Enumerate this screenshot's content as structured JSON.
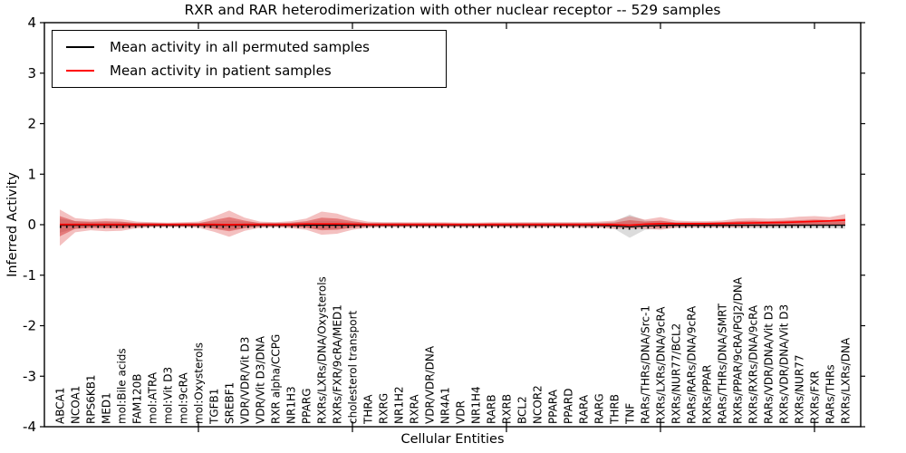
{
  "figure": {
    "title": "RXR and RAR heterodimerization with other nuclear receptor -- 529 samples",
    "xlabel": "Cellular Entities",
    "ylabel": "Inferred Activity"
  },
  "legend": {
    "items": [
      {
        "label": "Mean activity in all permuted samples",
        "color": "#000000"
      },
      {
        "label": "Mean activity in patient samples",
        "color": "#ff0000"
      }
    ]
  },
  "colors": {
    "permuted_line": "#000000",
    "patient_line": "#ff0000",
    "permuted_band": "rgba(140,140,140,0.30)",
    "patient_band_outer": "rgba(222,60,60,0.32)",
    "patient_band_inner": "rgba(210,40,40,0.45)",
    "frame": "#000000"
  },
  "chart_data": {
    "type": "area",
    "title": "RXR and RAR heterodimerization with other nuclear receptor -- 529 samples",
    "xlabel": "Cellular Entities",
    "ylabel": "Inferred Activity",
    "ylim": [
      -4,
      4
    ],
    "ytick_labels": [
      "4",
      "3",
      "2",
      "1",
      "0",
      "-1",
      "-2",
      "-3",
      "-4"
    ],
    "ytick_values": [
      4,
      3,
      2,
      1,
      0,
      -1,
      -2,
      -3,
      -4
    ],
    "xtick_decade_positions": [
      10,
      20,
      30,
      40,
      50
    ],
    "grid": false,
    "legend_position": "upper-left",
    "categories": [
      "ABCA1",
      "NCOA1",
      "RPS6KB1",
      "MED1",
      "mol:Bile acids",
      "FAM120B",
      "mol:ATRA",
      "mol:Vit D3",
      "mol:9cRA",
      "mol:Oxysterols",
      "TGFB1",
      "SREBF1",
      "VDR/VDR/Vit D3",
      "VDR/Vit D3/DNA",
      "RXR alpha/CCPG",
      "NR1H3",
      "PPARG",
      "RXRs/LXRs/DNA/Oxysterols",
      "RXRs/FXR/9cRA/MED1",
      "cholesterol transport",
      "THRA",
      "RXRG",
      "NR1H2",
      "RXRA",
      "VDR/VDR/DNA",
      "NR4A1",
      "VDR",
      "NR1H4",
      "RARB",
      "RXRB",
      "BCL2",
      "NCOR2",
      "PPARA",
      "PPARD",
      "RARA",
      "RARG",
      "THRB",
      "TNF",
      "RARs/THRs/DNA/Src-1",
      "RXRs/LXRs/DNA/9cRA",
      "RXRs/NUR77/BCL2",
      "RARs/RARs/DNA/9cRA",
      "RXRs/PPAR",
      "RARs/THRs/DNA/SMRT",
      "RXRs/PPAR/9cRA/PGJ2/DNA",
      "RXRs/RXRs/DNA/9cRA",
      "RARs/VDR/DNA/Vit D3",
      "RXRs/VDR/DNA/Vit D3",
      "RXRs/NUR77",
      "RXRs/FXR",
      "RARs/THRs",
      "RXRs/LXRs/DNA"
    ],
    "series": [
      {
        "name": "patient_band_outer_upper",
        "values": [
          0.3,
          0.13,
          0.1,
          0.12,
          0.11,
          0.06,
          0.05,
          0.04,
          0.05,
          0.06,
          0.16,
          0.28,
          0.14,
          0.06,
          0.05,
          0.07,
          0.12,
          0.26,
          0.22,
          0.12,
          0.06,
          0.05,
          0.05,
          0.05,
          0.05,
          0.05,
          0.04,
          0.04,
          0.05,
          0.05,
          0.05,
          0.05,
          0.05,
          0.05,
          0.05,
          0.06,
          0.08,
          0.17,
          0.1,
          0.15,
          0.08,
          0.07,
          0.07,
          0.08,
          0.12,
          0.13,
          0.12,
          0.13,
          0.16,
          0.17,
          0.15,
          0.21
        ]
      },
      {
        "name": "patient_band_outer_lower",
        "values": [
          -0.42,
          -0.15,
          -0.11,
          -0.13,
          -0.12,
          -0.07,
          -0.05,
          -0.05,
          -0.05,
          -0.06,
          -0.14,
          -0.24,
          -0.12,
          -0.06,
          -0.05,
          -0.07,
          -0.1,
          -0.2,
          -0.18,
          -0.1,
          -0.06,
          -0.05,
          -0.05,
          -0.05,
          -0.05,
          -0.05,
          -0.05,
          -0.05,
          -0.05,
          -0.05,
          -0.06,
          -0.06,
          -0.05,
          -0.05,
          -0.06,
          -0.06,
          -0.08,
          -0.08,
          -0.08,
          -0.1,
          -0.06,
          -0.05,
          -0.05,
          -0.05,
          -0.05,
          -0.04,
          -0.04,
          -0.03,
          -0.03,
          -0.02,
          -0.02,
          -0.02
        ]
      },
      {
        "name": "patient_band_inner_upper",
        "values": [
          0.17,
          0.07,
          0.06,
          0.07,
          0.06,
          0.03,
          0.03,
          0.02,
          0.03,
          0.03,
          0.09,
          0.15,
          0.08,
          0.03,
          0.03,
          0.04,
          0.07,
          0.14,
          0.12,
          0.07,
          0.03,
          0.03,
          0.03,
          0.03,
          0.03,
          0.03,
          0.02,
          0.02,
          0.03,
          0.03,
          0.03,
          0.03,
          0.03,
          0.03,
          0.03,
          0.03,
          0.04,
          0.09,
          0.06,
          0.08,
          0.04,
          0.04,
          0.04,
          0.05,
          0.07,
          0.08,
          0.07,
          0.08,
          0.09,
          0.1,
          0.09,
          0.12
        ]
      },
      {
        "name": "patient_band_inner_lower",
        "values": [
          -0.23,
          -0.08,
          -0.06,
          -0.07,
          -0.07,
          -0.04,
          -0.03,
          -0.03,
          -0.03,
          -0.03,
          -0.08,
          -0.13,
          -0.07,
          -0.03,
          -0.03,
          -0.04,
          -0.06,
          -0.11,
          -0.1,
          -0.06,
          -0.03,
          -0.03,
          -0.03,
          -0.03,
          -0.03,
          -0.03,
          -0.03,
          -0.03,
          -0.03,
          -0.03,
          -0.03,
          -0.03,
          -0.03,
          -0.03,
          -0.03,
          -0.03,
          -0.04,
          -0.04,
          -0.04,
          -0.06,
          -0.03,
          -0.03,
          -0.03,
          -0.03,
          -0.03,
          -0.02,
          -0.02,
          -0.02,
          -0.02,
          -0.01,
          -0.01,
          -0.01
        ]
      },
      {
        "name": "permuted_band_upper",
        "values": [
          0.12,
          0.07,
          0.05,
          0.05,
          0.05,
          0.04,
          0.04,
          0.03,
          0.03,
          0.04,
          0.06,
          0.08,
          0.06,
          0.04,
          0.04,
          0.04,
          0.05,
          0.08,
          0.07,
          0.05,
          0.04,
          0.04,
          0.04,
          0.03,
          0.03,
          0.03,
          0.03,
          0.03,
          0.03,
          0.03,
          0.04,
          0.04,
          0.04,
          0.04,
          0.04,
          0.04,
          0.06,
          0.2,
          0.08,
          0.07,
          0.05,
          0.05,
          0.05,
          0.05,
          0.05,
          0.05,
          0.05,
          0.05,
          0.05,
          0.05,
          0.05,
          0.05
        ]
      },
      {
        "name": "permuted_band_lower",
        "values": [
          -0.16,
          -0.08,
          -0.06,
          -0.06,
          -0.06,
          -0.05,
          -0.04,
          -0.04,
          -0.04,
          -0.04,
          -0.07,
          -0.1,
          -0.07,
          -0.05,
          -0.04,
          -0.05,
          -0.06,
          -0.09,
          -0.08,
          -0.06,
          -0.05,
          -0.04,
          -0.04,
          -0.04,
          -0.04,
          -0.04,
          -0.04,
          -0.04,
          -0.04,
          -0.04,
          -0.04,
          -0.04,
          -0.04,
          -0.04,
          -0.05,
          -0.05,
          -0.08,
          -0.26,
          -0.1,
          -0.08,
          -0.06,
          -0.06,
          -0.06,
          -0.06,
          -0.07,
          -0.07,
          -0.07,
          -0.07,
          -0.07,
          -0.07,
          -0.07,
          -0.08
        ]
      },
      {
        "name": "permuted_mean",
        "values": [
          -0.01,
          -0.01,
          -0.01,
          -0.01,
          -0.01,
          -0.01,
          -0.01,
          -0.01,
          -0.01,
          -0.01,
          -0.01,
          -0.01,
          -0.01,
          -0.01,
          -0.01,
          -0.01,
          -0.01,
          -0.01,
          -0.01,
          -0.01,
          -0.01,
          -0.01,
          -0.01,
          -0.01,
          -0.01,
          -0.01,
          -0.01,
          -0.01,
          -0.01,
          -0.01,
          -0.01,
          -0.01,
          -0.01,
          -0.01,
          -0.01,
          -0.015,
          -0.025,
          -0.045,
          -0.025,
          -0.015,
          -0.01,
          -0.01,
          -0.01,
          -0.01,
          -0.01,
          -0.01,
          -0.01,
          -0.01,
          -0.01,
          -0.01,
          -0.01,
          -0.01
        ]
      },
      {
        "name": "permuted_mean_dotted",
        "values": [
          -0.045,
          -0.045,
          -0.045,
          -0.045,
          -0.045,
          -0.045,
          -0.045,
          -0.045,
          -0.045,
          -0.045,
          -0.045,
          -0.045,
          -0.045,
          -0.045,
          -0.045,
          -0.045,
          -0.045,
          -0.045,
          -0.045,
          -0.045,
          -0.045,
          -0.045,
          -0.045,
          -0.045,
          -0.045,
          -0.045,
          -0.045,
          -0.045,
          -0.045,
          -0.045,
          -0.045,
          -0.045,
          -0.045,
          -0.045,
          -0.045,
          -0.05,
          -0.06,
          -0.08,
          -0.06,
          -0.05,
          -0.045,
          -0.045,
          -0.045,
          -0.045,
          -0.045,
          -0.045,
          -0.045,
          -0.045,
          -0.045,
          -0.045,
          -0.045,
          -0.045
        ]
      },
      {
        "name": "patient_mean",
        "values": [
          0.005,
          0.005,
          0.005,
          0.005,
          0.005,
          0.005,
          0.005,
          0.005,
          0.005,
          0.005,
          0.005,
          0.0,
          0.005,
          0.005,
          0.005,
          0.005,
          0.015,
          0.015,
          0.015,
          0.01,
          0.005,
          0.005,
          0.005,
          0.005,
          0.005,
          0.005,
          0.005,
          0.005,
          0.005,
          0.005,
          0.005,
          0.005,
          0.005,
          0.005,
          0.005,
          0.005,
          0.0,
          -0.01,
          0.01,
          0.02,
          0.02,
          0.02,
          0.02,
          0.025,
          0.03,
          0.035,
          0.04,
          0.045,
          0.055,
          0.065,
          0.075,
          0.09
        ]
      }
    ]
  }
}
